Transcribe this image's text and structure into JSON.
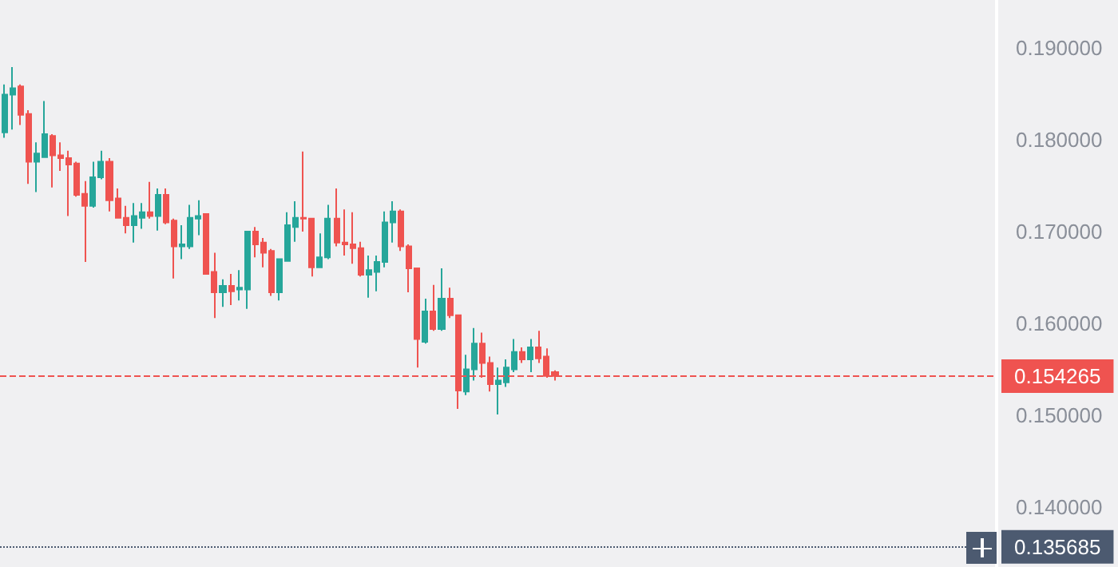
{
  "chart_data": {
    "type": "candlestick",
    "categories": [
      null,
      null,
      null,
      null,
      null,
      null,
      null,
      null,
      null,
      null,
      null,
      null,
      null,
      null,
      null,
      null,
      null,
      null,
      null,
      null,
      null,
      null,
      null,
      null,
      null,
      null,
      null,
      null,
      null,
      null,
      null,
      null,
      null,
      null,
      null,
      null,
      null,
      null,
      null,
      null,
      null,
      null,
      null,
      null,
      null,
      null,
      null,
      null,
      null,
      null,
      null,
      null,
      null,
      null,
      null,
      null,
      null,
      null,
      null,
      null,
      null,
      null,
      null,
      null,
      null,
      null,
      null,
      null,
      null,
      null,
      null,
      null,
      null,
      null,
      null,
      null,
      null,
      null,
      null,
      null,
      null,
      null,
      null,
      null,
      null,
      null,
      null,
      null,
      null,
      null,
      null,
      null,
      null,
      null,
      null,
      null,
      null,
      null,
      null,
      null,
      null,
      null,
      null,
      null,
      null,
      null,
      null,
      null,
      null,
      null,
      null,
      null,
      null,
      null,
      null,
      null,
      null,
      null,
      null,
      null,
      null,
      null,
      null
    ],
    "ohlc": [
      [
        0.1808,
        0.186,
        0.1802,
        0.1849
      ],
      [
        0.1849,
        0.1879,
        0.1811,
        0.1856
      ],
      [
        0.1858,
        0.186,
        0.1816,
        0.1827
      ],
      [
        0.1828,
        0.1832,
        0.1752,
        0.1776
      ],
      [
        0.1776,
        0.1797,
        0.1743,
        0.1785
      ],
      [
        0.1781,
        0.1842,
        0.1781,
        0.1806
      ],
      [
        0.1804,
        0.1806,
        0.1748,
        0.1783
      ],
      [
        0.1783,
        0.1797,
        0.1766,
        0.178
      ],
      [
        0.178,
        0.1788,
        0.1717,
        0.1773
      ],
      [
        0.1774,
        0.1776,
        0.1738,
        0.174
      ],
      [
        0.1741,
        0.1755,
        0.1667,
        0.1728
      ],
      [
        0.1728,
        0.1776,
        0.1726,
        0.1759
      ],
      [
        0.1759,
        0.1788,
        0.1757,
        0.1776
      ],
      [
        0.1776,
        0.178,
        0.1722,
        0.1734
      ],
      [
        0.1736,
        0.1747,
        0.1714,
        0.1715
      ],
      [
        0.1715,
        0.1728,
        0.1698,
        0.1707
      ],
      [
        0.1707,
        0.1731,
        0.1688,
        0.1717
      ],
      [
        0.1715,
        0.1731,
        0.1703,
        0.1721
      ],
      [
        0.1721,
        0.1754,
        0.1714,
        0.1717
      ],
      [
        0.1717,
        0.1747,
        0.1701,
        0.174
      ],
      [
        0.174,
        0.1747,
        0.1708,
        0.171
      ],
      [
        0.1712,
        0.1714,
        0.1649,
        0.1684
      ],
      [
        0.1684,
        0.1707,
        0.167,
        0.1686
      ],
      [
        0.1684,
        0.1729,
        0.1681,
        0.1715
      ],
      [
        0.1714,
        0.1734,
        0.1696,
        0.1717
      ],
      [
        0.1719,
        0.1719,
        0.1653,
        0.1654
      ],
      [
        0.1656,
        0.1677,
        0.1606,
        0.1634
      ],
      [
        0.1634,
        0.1648,
        0.1618,
        0.1641
      ],
      [
        0.1641,
        0.1654,
        0.162,
        0.1635
      ],
      [
        0.1637,
        0.1658,
        0.1625,
        0.1639
      ],
      [
        0.1637,
        0.17,
        0.1616,
        0.17
      ],
      [
        0.17,
        0.1705,
        0.1672,
        0.1686
      ],
      [
        0.1688,
        0.1693,
        0.1661,
        0.1677
      ],
      [
        0.1679,
        0.1681,
        0.163,
        0.1634
      ],
      [
        0.1634,
        0.167,
        0.1625,
        0.167
      ],
      [
        0.1668,
        0.1721,
        0.1668,
        0.1707
      ],
      [
        0.1705,
        0.1733,
        0.1689,
        0.1715
      ],
      [
        0.1715,
        0.1787,
        0.17,
        0.1714
      ],
      [
        0.1714,
        0.1715,
        0.1651,
        0.1661
      ],
      [
        0.1661,
        0.1698,
        0.1661,
        0.1672
      ],
      [
        0.1672,
        0.1729,
        0.167,
        0.1714
      ],
      [
        0.1714,
        0.1747,
        0.1684,
        0.1688
      ],
      [
        0.1688,
        0.1724,
        0.1674,
        0.1686
      ],
      [
        0.1686,
        0.1721,
        0.1665,
        0.1682
      ],
      [
        0.1682,
        0.1689,
        0.1651,
        0.1653
      ],
      [
        0.1653,
        0.1674,
        0.1628,
        0.1658
      ],
      [
        0.1656,
        0.1674,
        0.1635,
        0.1667
      ],
      [
        0.1667,
        0.1722,
        0.1661,
        0.171
      ],
      [
        0.171,
        0.1733,
        0.1688,
        0.1722
      ],
      [
        0.1722,
        0.1724,
        0.1679,
        0.1684
      ],
      [
        0.1684,
        0.1686,
        0.1634,
        0.166
      ],
      [
        0.166,
        0.166,
        0.1552,
        0.1583
      ],
      [
        0.158,
        0.1627,
        0.1578,
        0.1613
      ],
      [
        0.1613,
        0.1642,
        0.1592,
        0.1594
      ],
      [
        0.1594,
        0.166,
        0.1592,
        0.1627
      ],
      [
        0.1627,
        0.1639,
        0.1606,
        0.1609
      ],
      [
        0.1609,
        0.1609,
        0.1507,
        0.1527
      ],
      [
        0.1526,
        0.1566,
        0.1522,
        0.155
      ],
      [
        0.155,
        0.1595,
        0.1538,
        0.1578
      ],
      [
        0.1578,
        0.159,
        0.1541,
        0.1557
      ],
      [
        0.1557,
        0.1564,
        0.1526,
        0.1534
      ],
      [
        0.1534,
        0.1552,
        0.1501,
        0.1538
      ],
      [
        0.1536,
        0.1561,
        0.1531,
        0.1552
      ],
      [
        0.155,
        0.1583,
        0.1547,
        0.1569
      ],
      [
        0.1569,
        0.1574,
        0.1557,
        0.1561
      ],
      [
        0.1561,
        0.1583,
        0.1547,
        0.1574
      ],
      [
        0.1574,
        0.1592,
        0.1557,
        0.1562
      ],
      [
        0.1564,
        0.1573,
        0.1541,
        0.1543
      ],
      [
        0.1547,
        0.1549,
        0.1538,
        0.1543
      ],
      null,
      null,
      null,
      null,
      null,
      null,
      null,
      null,
      null,
      null,
      null,
      null,
      null,
      null,
      null,
      null,
      null,
      null,
      null,
      null,
      null,
      null,
      null,
      null,
      null,
      null,
      null,
      null,
      null,
      null,
      null,
      null,
      null,
      null,
      null,
      null,
      null,
      null,
      null,
      null,
      null,
      null,
      null,
      null,
      null,
      null,
      null,
      null,
      null,
      null,
      null,
      null,
      null,
      null
    ],
    "ylim": [
      0.1335,
      0.1952
    ],
    "yticks": [
      {
        "value": 0.14,
        "label": "0.140000"
      },
      {
        "value": 0.15,
        "label": "0.150000"
      },
      {
        "value": 0.16,
        "label": "0.160000"
      },
      {
        "value": 0.17,
        "label": "0.170000"
      },
      {
        "value": 0.18,
        "label": "0.180000"
      },
      {
        "value": 0.19,
        "label": "0.190000"
      }
    ],
    "ref_lines": [
      {
        "axis": "y",
        "value": 0.154265,
        "label": "0.154265",
        "color": "#ef5350",
        "line_style": "dashed"
      },
      {
        "axis": "y",
        "value": 0.135685,
        "label": "0.135685",
        "color": "#4c5a70",
        "line_style": "dotted"
      }
    ],
    "grid": false,
    "tick_labels": "y"
  }
}
